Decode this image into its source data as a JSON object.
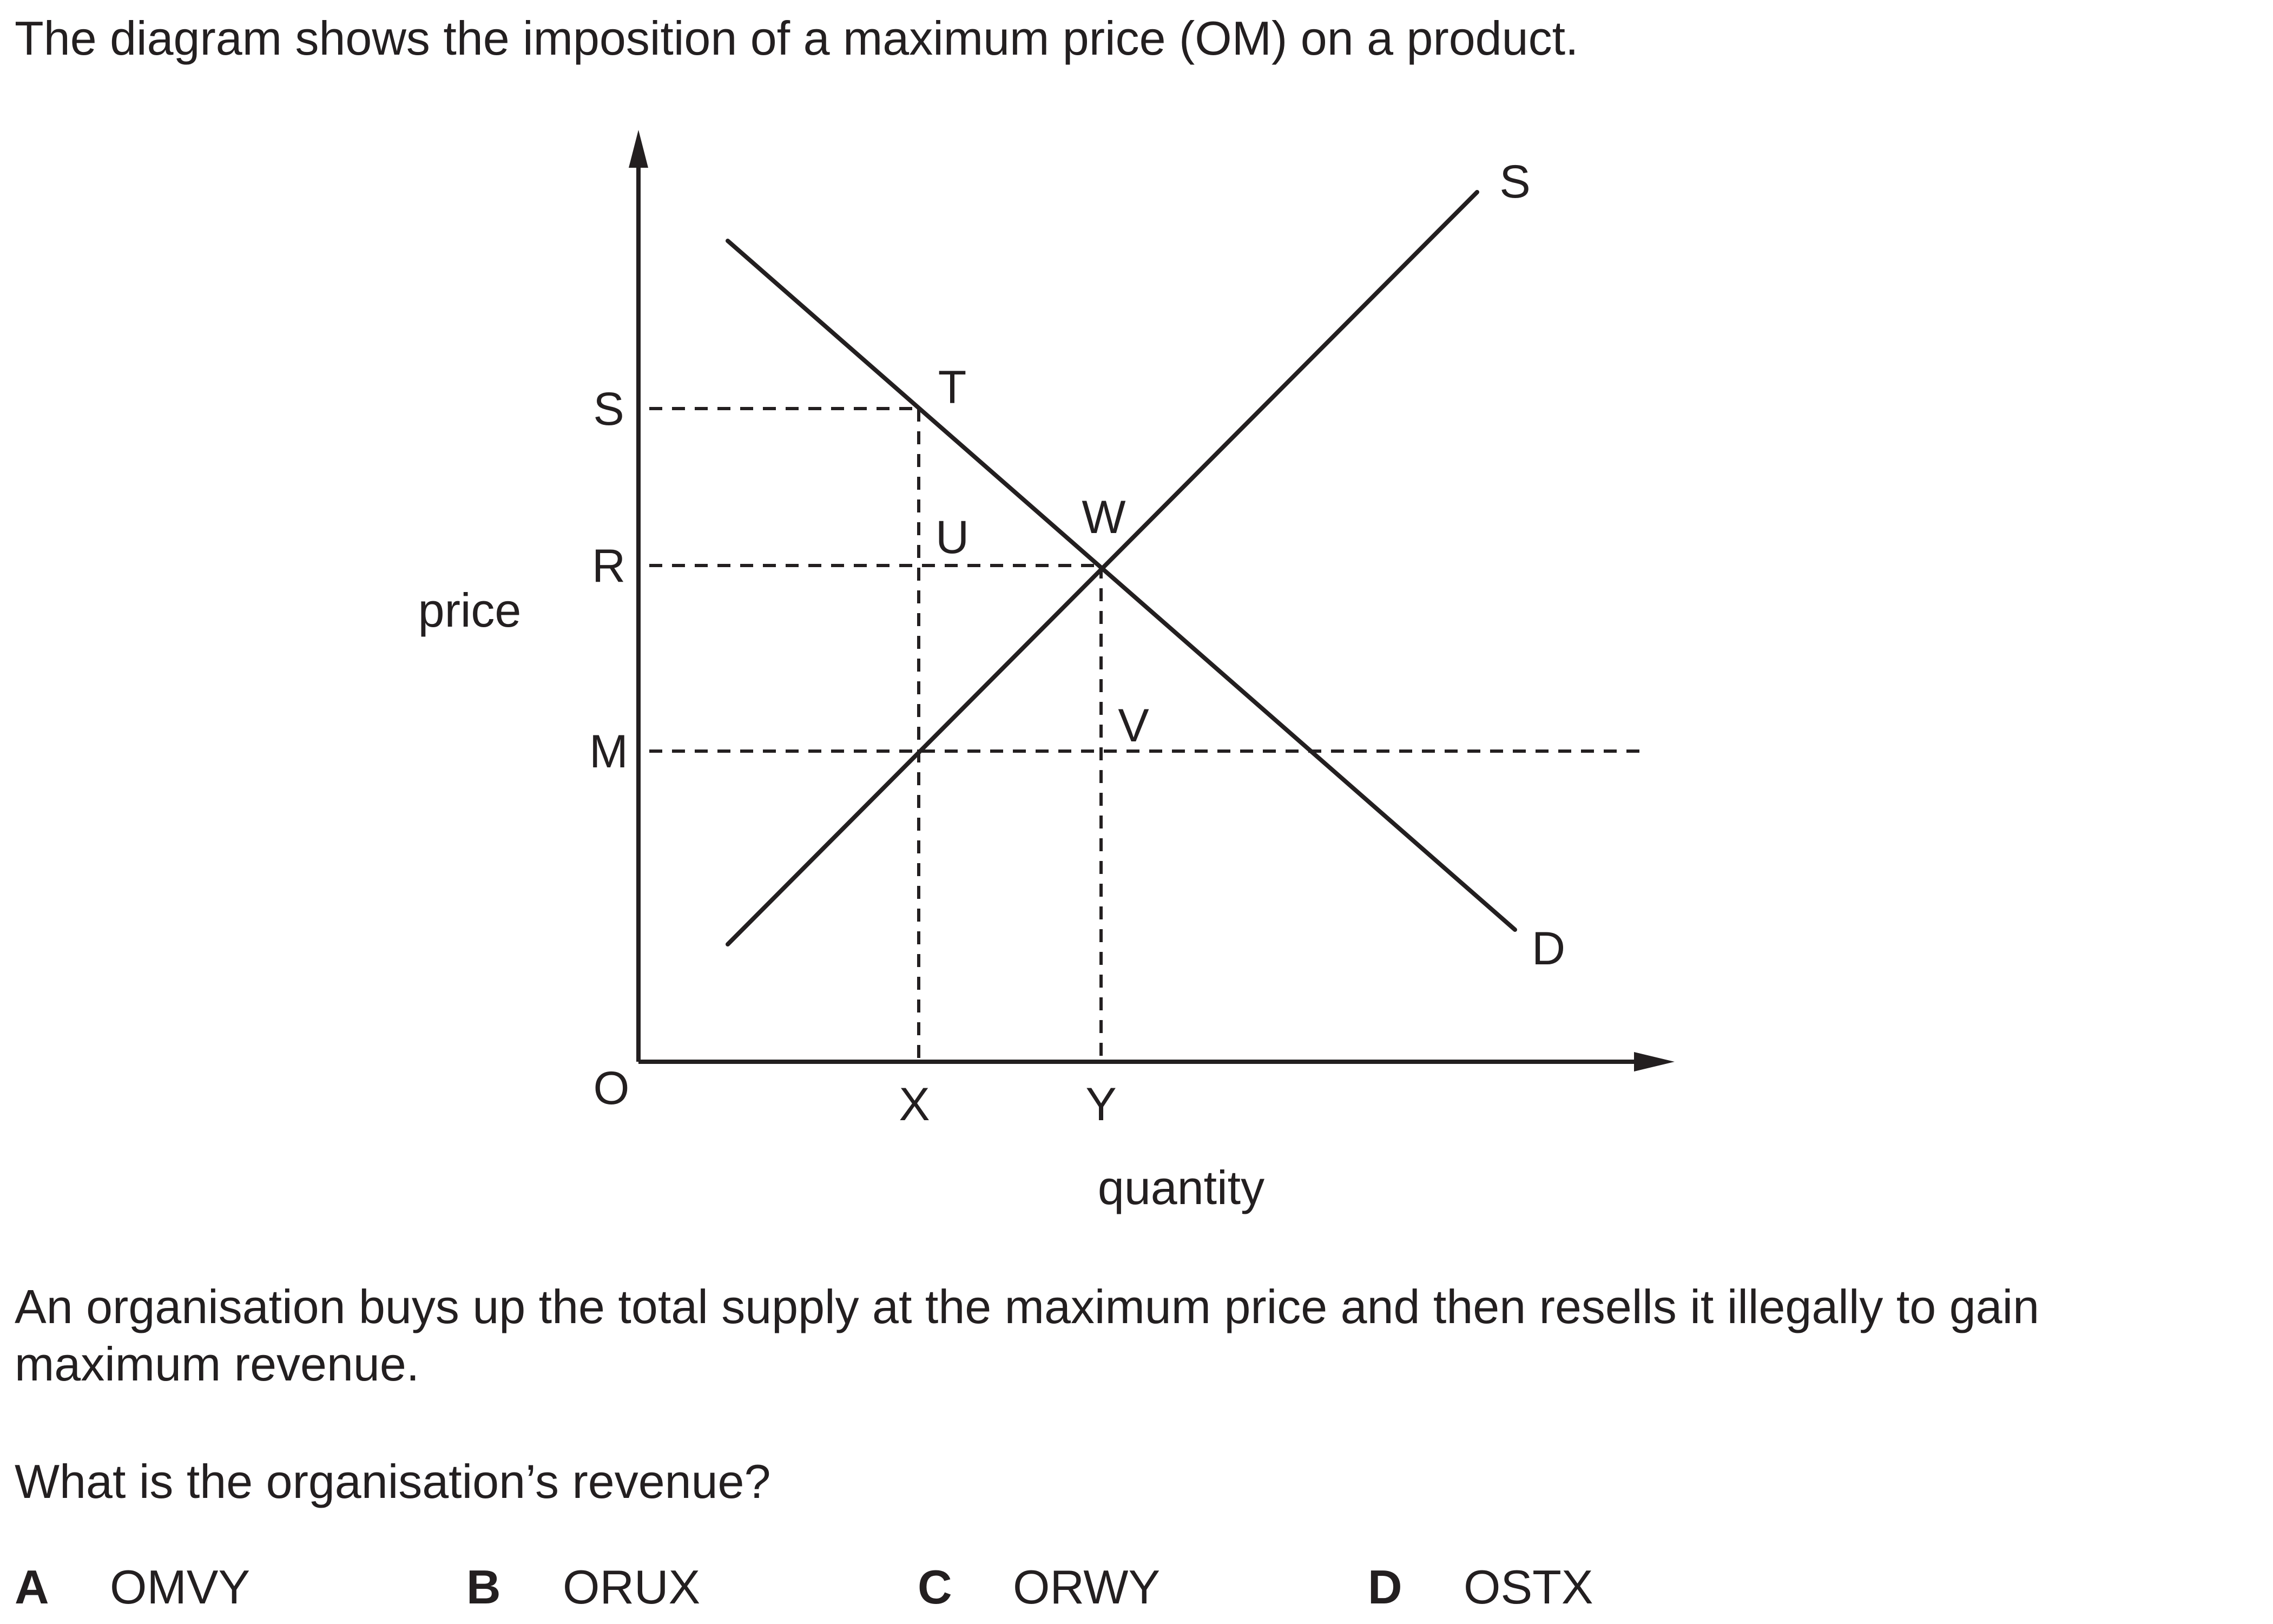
{
  "intro": "The diagram shows the imposition of a maximum price (OM) on a product.",
  "diagram": {
    "axes": {
      "y_title": "price",
      "x_title": "quantity",
      "origin": "O"
    },
    "price_levels": [
      "S",
      "R",
      "M"
    ],
    "quantity_levels": [
      "X",
      "Y"
    ],
    "points": [
      "T",
      "U",
      "W",
      "V"
    ],
    "curves": {
      "supply": "S",
      "demand": "D"
    },
    "line_color": "#231f20"
  },
  "statement_line1": "An organisation buys up the total supply at the maximum price and then resells it illegally to gain",
  "statement_line2": "maximum revenue.",
  "question": "What is the organisation’s revenue?",
  "options": [
    {
      "letter": "A",
      "text": "OMVY"
    },
    {
      "letter": "B",
      "text": "ORUX"
    },
    {
      "letter": "C",
      "text": "ORWY"
    },
    {
      "letter": "D",
      "text": "OSTX"
    }
  ]
}
